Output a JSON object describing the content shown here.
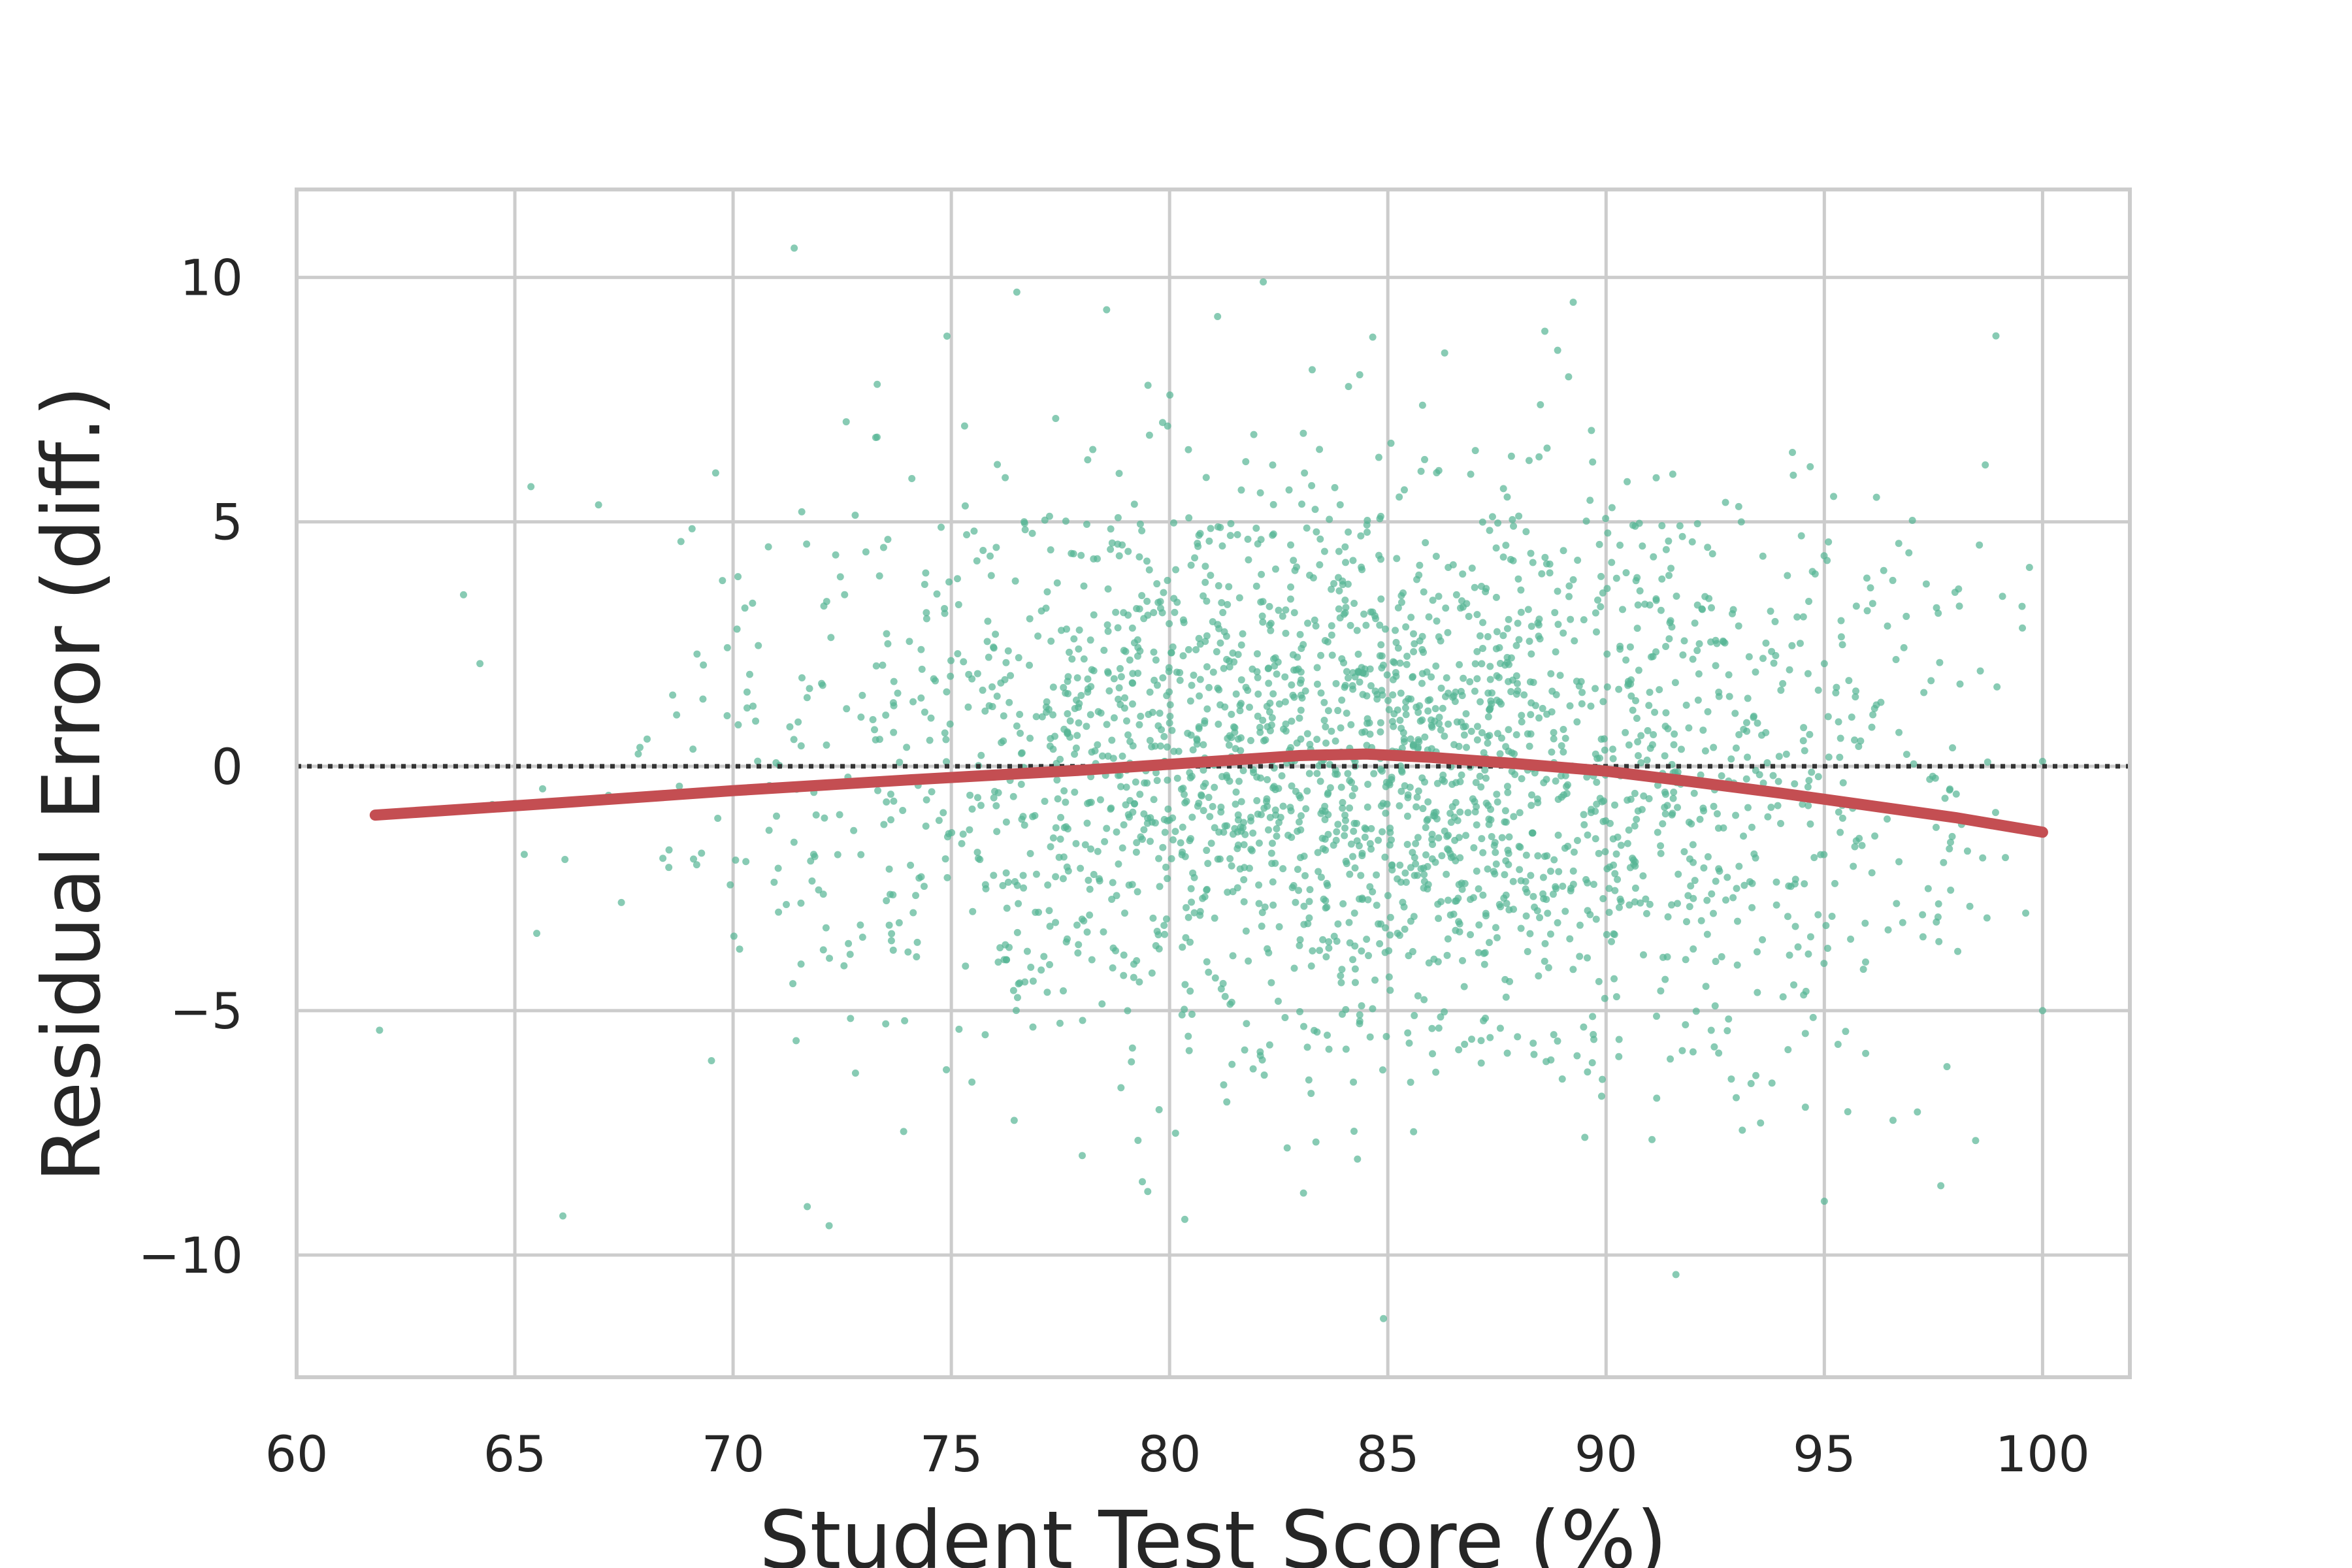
{
  "chart_data": {
    "type": "scatter",
    "title": "",
    "xlabel": "Student Test Score (%)",
    "ylabel": "Residual Error (diff.)",
    "xlim": [
      60,
      102
    ],
    "ylim": [
      -12.5,
      11.8
    ],
    "xticks": [
      60,
      65,
      70,
      75,
      80,
      85,
      90,
      95,
      100
    ],
    "xtick_labels": [
      "60",
      "65",
      "70",
      "75",
      "80",
      "85",
      "90",
      "95",
      "100"
    ],
    "yticks": [
      -10,
      -5,
      0,
      5,
      10
    ],
    "ytick_labels": [
      "−10",
      "−5",
      "0",
      "5",
      "10"
    ],
    "grid": true,
    "reference_line": {
      "y": 0,
      "style": "dotted",
      "color": "#333333"
    },
    "colors": {
      "points": "#55b594",
      "trend": "#c44e52",
      "grid": "#cccccc",
      "text": "#262626"
    },
    "series": [
      {
        "type": "scatter",
        "n_points": 2600,
        "x_mean": 84.5,
        "x_sd": 6.5,
        "y_mean": 0,
        "y_sd": 3.0,
        "x_range": [
          61.8,
          100
        ],
        "sample_outliers": [
          [
            71.4,
            10.6
          ],
          [
            76.5,
            9.7
          ],
          [
            81.1,
            9.2
          ],
          [
            74.9,
            8.8
          ],
          [
            84.9,
            -11.3
          ],
          [
            91.6,
            -10.4
          ],
          [
            72.2,
            -9.4
          ],
          [
            66.1,
            -9.2
          ],
          [
            79.5,
            -8.7
          ],
          [
            95.0,
            -8.9
          ],
          [
            61.9,
            -5.4
          ],
          [
            100.0,
            -5.0
          ],
          [
            100.0,
            0.1
          ],
          [
            64.2,
            2.1
          ],
          [
            69.6,
            6.0
          ]
        ]
      },
      {
        "type": "line",
        "x": [
          61.8,
          66,
          70,
          74,
          78,
          81,
          83,
          84.5,
          86,
          88,
          90,
          92,
          94,
          96,
          98,
          100
        ],
        "y": [
          -1.0,
          -0.75,
          -0.5,
          -0.28,
          -0.08,
          0.1,
          0.22,
          0.25,
          0.18,
          0.05,
          -0.1,
          -0.32,
          -0.55,
          -0.8,
          -1.05,
          -1.35
        ]
      }
    ]
  }
}
